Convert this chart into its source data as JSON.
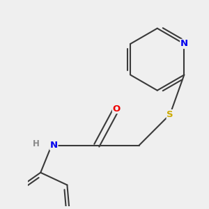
{
  "background_color": "#efefef",
  "bond_color": "#3a3a3a",
  "bond_width": 1.5,
  "dbo": 0.055,
  "atom_colors": {
    "N": "#0000ee",
    "O": "#ee0000",
    "S": "#ccaa00",
    "Cl": "#00aa00",
    "C": "#3a3a3a"
  },
  "font_size": 9.5,
  "fig_size": [
    3.0,
    3.0
  ],
  "dpi": 100
}
